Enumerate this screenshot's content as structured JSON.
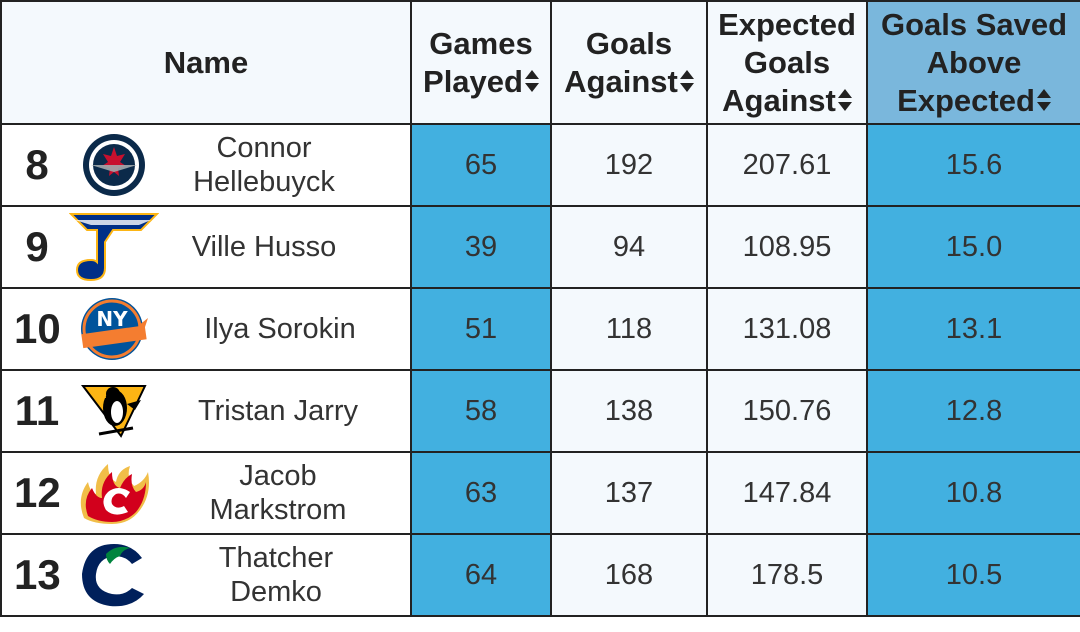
{
  "headers": {
    "name": "Name",
    "games_played_1": "Games",
    "games_played_2": "Played",
    "goals_against_1": "Goals",
    "goals_against_2": "Against",
    "xga_1": "Expected",
    "xga_2": "Goals",
    "xga_3": "Against",
    "gsax_1": "Goals Saved",
    "gsax_2": "Above",
    "gsax_3": "Expected"
  },
  "rows": [
    {
      "rank": "8",
      "name_1": "Connor",
      "name_2": "Hellebuyck",
      "team_icon": "winnipeg-jets-logo",
      "games_played": "65",
      "goals_against": "192",
      "expected_goals_against": "207.61",
      "gsax": "15.6"
    },
    {
      "rank": "9",
      "name_1": "Ville Husso",
      "name_2": "",
      "team_icon": "st-louis-blues-logo",
      "games_played": "39",
      "goals_against": "94",
      "expected_goals_against": "108.95",
      "gsax": "15.0"
    },
    {
      "rank": "10",
      "name_1": "Ilya Sorokin",
      "name_2": "",
      "team_icon": "new-york-islanders-logo",
      "games_played": "51",
      "goals_against": "118",
      "expected_goals_against": "131.08",
      "gsax": "13.1"
    },
    {
      "rank": "11",
      "name_1": "Tristan Jarry",
      "name_2": "",
      "team_icon": "pittsburgh-penguins-logo",
      "games_played": "58",
      "goals_against": "138",
      "expected_goals_against": "150.76",
      "gsax": "12.8"
    },
    {
      "rank": "12",
      "name_1": "Jacob",
      "name_2": "Markstrom",
      "team_icon": "calgary-flames-logo",
      "games_played": "63",
      "goals_against": "137",
      "expected_goals_against": "147.84",
      "gsax": "10.8"
    },
    {
      "rank": "13",
      "name_1": "Thatcher",
      "name_2": "Demko",
      "team_icon": "vancouver-canucks-logo",
      "games_played": "64",
      "goals_against": "168",
      "expected_goals_against": "178.5",
      "gsax": "10.5"
    }
  ],
  "colors": {
    "highlight_column": "#42b0e0",
    "sorted_header": "#7ab7dc",
    "header_bg": "#f4f9fd",
    "border": "#222222"
  }
}
